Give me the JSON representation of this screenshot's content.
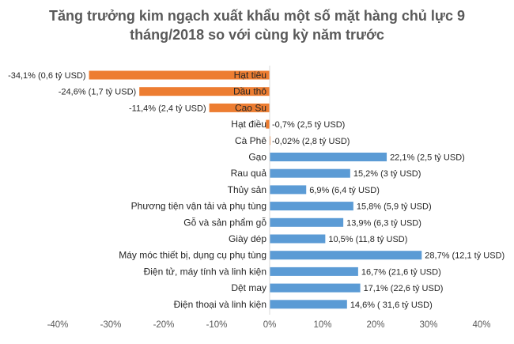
{
  "chart_data": {
    "type": "bar",
    "orientation": "horizontal",
    "title_lines": [
      "Tăng trưởng kim ngạch xuất khẩu một số mặt hàng chủ lực 9",
      "tháng/2018 so với cùng kỳ năm trước"
    ],
    "xlim": [
      -40,
      40
    ],
    "x_ticks": [
      "-40%",
      "-30%",
      "-20%",
      "-10%",
      "0%",
      "10%",
      "20%",
      "30%",
      "40%"
    ],
    "grid": false,
    "legend": "none",
    "colors": {
      "negative": "#ED7D31",
      "positive": "#5B9BD5"
    },
    "categories": [
      "Hạt tiêu",
      "Dầu thô",
      "Cao Su",
      "Hạt điều",
      "Cà Phê",
      "Gạo",
      "Rau quả",
      "Thủy sản",
      "Phương tiện vận tải và phụ tùng",
      "Gỗ và sản phẩm gỗ",
      "Giày dép",
      "Máy móc thiết bị, dụng cụ phụ tùng",
      "Điện tử, máy tính và linh kiện",
      "Dệt may",
      "Điện thoại và linh kiện"
    ],
    "values": [
      -34.1,
      -24.6,
      -11.4,
      -0.7,
      -0.02,
      22.1,
      15.2,
      6.9,
      15.8,
      13.9,
      10.5,
      28.7,
      16.7,
      17.1,
      14.6
    ],
    "data_labels": [
      "-34,1% (0,6 tỷ USD)",
      "-24,6% (1,7 tỷ USD)",
      "-11,4% (2,4 tỷ USD)",
      "-0,7% (2,5 tỷ USD)",
      "-0,02% (2,8 tỷ USD)",
      "22,1% (2,5 tỷ USD)",
      "15,2% (3 tỷ USD)",
      "6,9% (6,4 tỷ USD)",
      "15,8% (5,9 tỷ USD)",
      "13,9% (6,3 tỷ USD)",
      "10,5% (11,8 tỷ USD)",
      "28,7% (12,1 tỷ USD)",
      "16,7% (21,6 tỷ USD)",
      "17,1% (22,6 tỷ USD)",
      "14,6% ( 31,6 tỷ USD)"
    ]
  }
}
